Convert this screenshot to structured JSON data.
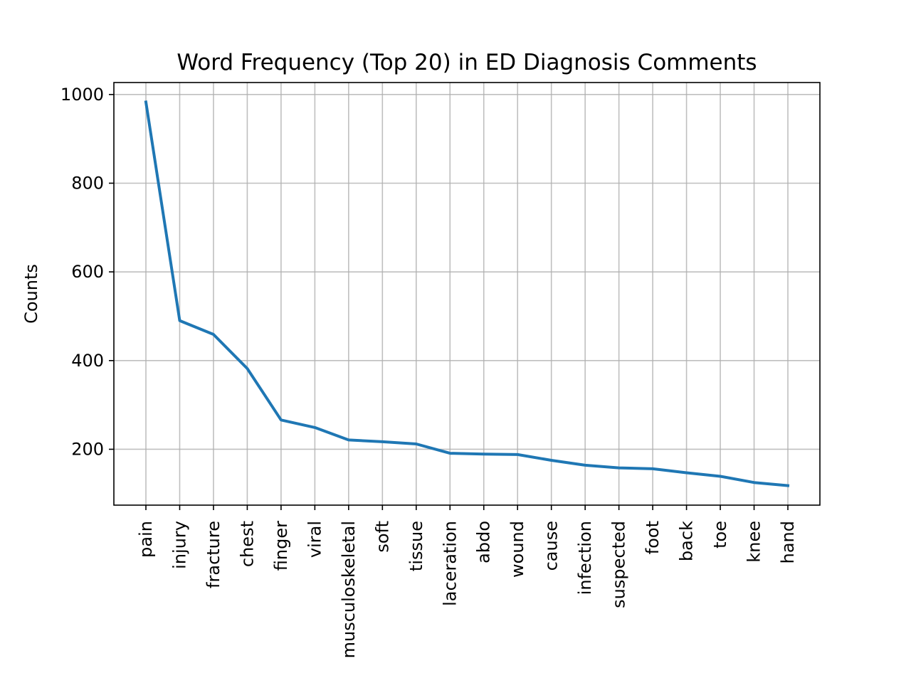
{
  "chart_data": {
    "type": "line",
    "title": "Word Frequency (Top 20) in ED Diagnosis Comments",
    "xlabel": "",
    "ylabel": "Counts",
    "categories": [
      "pain",
      "injury",
      "fracture",
      "chest",
      "finger",
      "viral",
      "musculoskeletal",
      "soft",
      "tissue",
      "laceration",
      "abdo",
      "wound",
      "cause",
      "infection",
      "suspected",
      "foot",
      "back",
      "toe",
      "knee",
      "hand"
    ],
    "series": [
      {
        "values": [
          983,
          490,
          459,
          382,
          266,
          249,
          221,
          217,
          212,
          191,
          189,
          188,
          175,
          164,
          158,
          156,
          147,
          139,
          125,
          118
        ],
        "color": "#1f77b4"
      }
    ],
    "yticks": [
      200,
      400,
      600,
      800,
      1000
    ],
    "ylim": [
      74,
      1027
    ],
    "grid": true,
    "legend": "none"
  }
}
